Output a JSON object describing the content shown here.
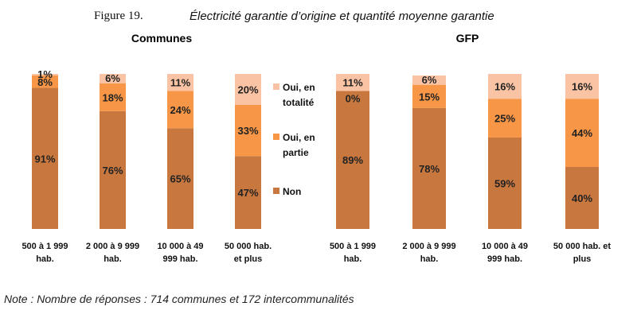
{
  "figure": {
    "label": "Figure 19.",
    "title": "Électricité garantie d’origine et quantité moyenne garantie"
  },
  "note": "Note : Nombre de réponses : 714 communes et 172 intercommunalités",
  "colors": {
    "non": "#C8773F",
    "oui_partie": "#F79646",
    "oui_totalite": "#FAC4A4",
    "label_text": "#222222"
  },
  "chart_data": [
    {
      "type": "bar",
      "stacked": true,
      "percent": true,
      "title": "Communes",
      "categories": [
        [
          "500 à 1 999",
          "hab."
        ],
        [
          "2 000 à 9 999",
          "hab."
        ],
        [
          "10 000 à 49",
          "999 hab."
        ],
        [
          "50 000 hab.",
          "et plus"
        ]
      ],
      "series": [
        {
          "name": "Non",
          "key": "non",
          "values": [
            91,
            76,
            65,
            47
          ]
        },
        {
          "name": "Oui, en partie",
          "key": "oui_partie",
          "values": [
            8,
            18,
            24,
            33
          ]
        },
        {
          "name": "Oui, en totalité",
          "key": "oui_totalite",
          "values": [
            1,
            6,
            11,
            20
          ]
        }
      ],
      "legend": {
        "position": "right",
        "entries": [
          {
            "key": "oui_totalite",
            "lines": [
              "Oui, en",
              "totalité"
            ]
          },
          {
            "key": "oui_partie",
            "lines": [
              "Oui, en",
              "partie"
            ]
          },
          {
            "key": "non",
            "lines": [
              "Non"
            ]
          }
        ]
      },
      "ylim": [
        0,
        100
      ]
    },
    {
      "type": "bar",
      "stacked": true,
      "percent": true,
      "title": "GFP",
      "categories": [
        [
          "500 à 1 999",
          "hab."
        ],
        [
          "2 000 à 9 999",
          "hab."
        ],
        [
          "10 000 à 49",
          "999 hab."
        ],
        [
          "50 000 hab. et",
          "plus"
        ]
      ],
      "series": [
        {
          "name": "Non",
          "key": "non",
          "values": [
            89,
            78,
            59,
            40
          ]
        },
        {
          "name": "Oui, en partie",
          "key": "oui_partie",
          "values": [
            0,
            15,
            25,
            44
          ]
        },
        {
          "name": "Oui, en totalité",
          "key": "oui_totalite",
          "values": [
            11,
            6,
            16,
            16
          ]
        }
      ],
      "ylim": [
        0,
        100
      ]
    }
  ]
}
